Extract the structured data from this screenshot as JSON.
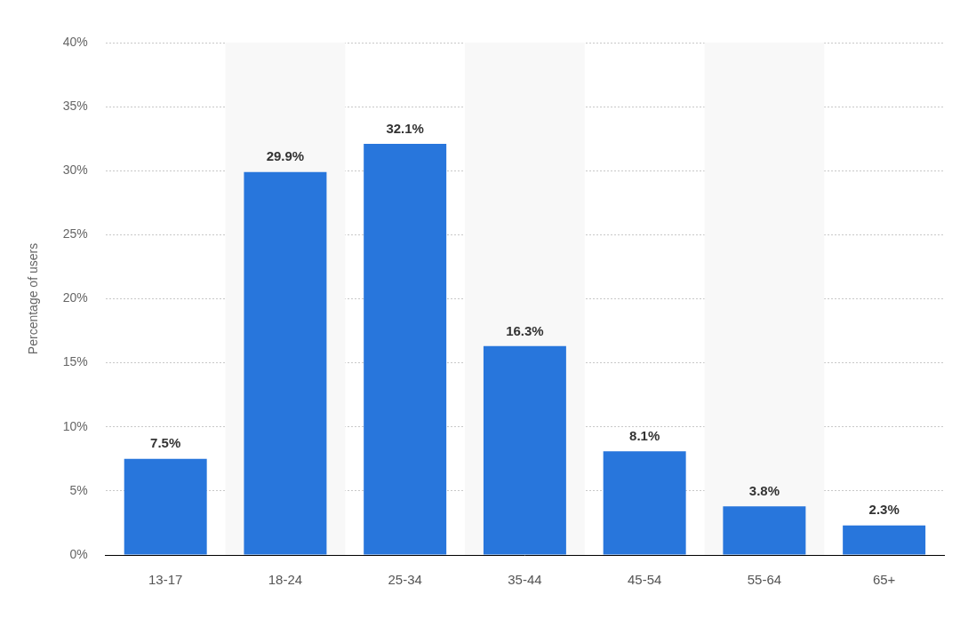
{
  "chart_data": {
    "type": "bar",
    "y_label": "Percentage of users",
    "categories": [
      "13-17",
      "18-24",
      "25-34",
      "35-44",
      "45-54",
      "55-64",
      "65+"
    ],
    "values": [
      7.5,
      29.9,
      32.1,
      16.3,
      8.1,
      3.8,
      2.3
    ],
    "value_labels": [
      "7.5%",
      "29.9%",
      "32.1%",
      "16.3%",
      "8.1%",
      "3.8%",
      "2.3%"
    ],
    "color": "#2876dc",
    "ylim": [
      0,
      40
    ],
    "yticks": [
      {
        "value": 0,
        "label": "0%"
      },
      {
        "value": 5,
        "label": "5%"
      },
      {
        "value": 10,
        "label": "10%"
      },
      {
        "value": 15,
        "label": "15%"
      },
      {
        "value": 20,
        "label": "20%"
      },
      {
        "value": 25,
        "label": "25%"
      },
      {
        "value": 30,
        "label": "30%"
      },
      {
        "value": 35,
        "label": "35%"
      },
      {
        "value": 40,
        "label": "40%"
      }
    ],
    "grid": true,
    "data_labels": true
  }
}
